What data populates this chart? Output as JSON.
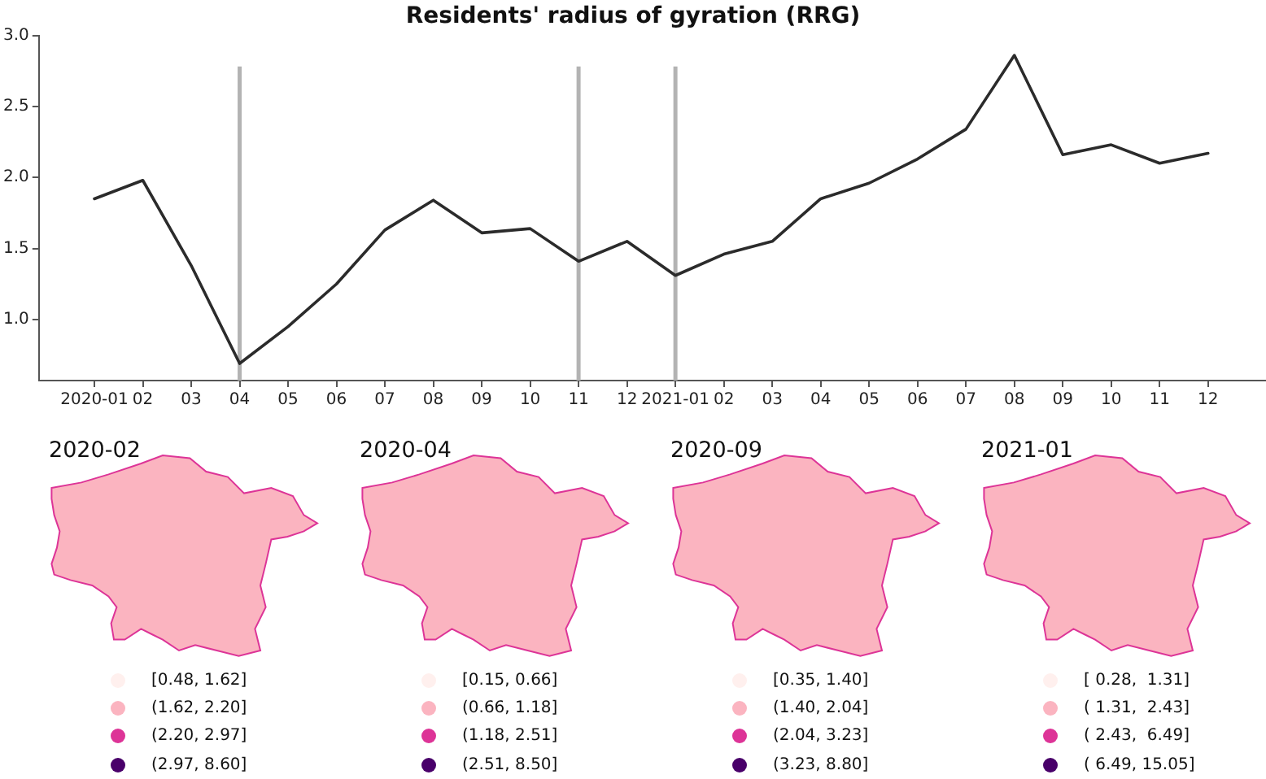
{
  "chart_data": [
    {
      "type": "line",
      "title": "Residents' radius of gyration (RRG)",
      "x": [
        "2020-01",
        "2020-02",
        "2020-03",
        "2020-04",
        "2020-05",
        "2020-06",
        "2020-07",
        "2020-08",
        "2020-09",
        "2020-10",
        "2020-11",
        "2020-12",
        "2021-01",
        "2021-02",
        "2021-03",
        "2021-04",
        "2021-05",
        "2021-06",
        "2021-07",
        "2021-08",
        "2021-09",
        "2021-10",
        "2021-11",
        "2021-12"
      ],
      "series": [
        {
          "color": "#2b2b2b",
          "values": [
            1.85,
            1.98,
            1.38,
            0.69,
            0.95,
            1.25,
            1.63,
            1.84,
            1.61,
            1.64,
            1.41,
            1.55,
            1.31,
            1.46,
            1.55,
            1.85,
            1.96,
            2.13,
            2.34,
            2.86,
            2.16,
            2.23,
            2.1,
            2.17
          ]
        }
      ],
      "xlim": [
        "2019-11-27",
        "2022-01-07"
      ],
      "xticks": [
        {
          "value": "2020-01",
          "label": "2020-01"
        },
        {
          "value": "2020-02",
          "label": "02"
        },
        {
          "value": "2020-03",
          "label": "03"
        },
        {
          "value": "2020-04",
          "label": "04"
        },
        {
          "value": "2020-05",
          "label": "05"
        },
        {
          "value": "2020-06",
          "label": "06"
        },
        {
          "value": "2020-07",
          "label": "07"
        },
        {
          "value": "2020-08",
          "label": "08"
        },
        {
          "value": "2020-09",
          "label": "09"
        },
        {
          "value": "2020-10",
          "label": "10"
        },
        {
          "value": "2020-11",
          "label": "11"
        },
        {
          "value": "2020-12",
          "label": "12"
        },
        {
          "value": "2021-01",
          "label": "2021-01"
        },
        {
          "value": "2021-02",
          "label": "02"
        },
        {
          "value": "2021-03",
          "label": "03"
        },
        {
          "value": "2021-04",
          "label": "04"
        },
        {
          "value": "2021-05",
          "label": "05"
        },
        {
          "value": "2021-06",
          "label": "06"
        },
        {
          "value": "2021-07",
          "label": "07"
        },
        {
          "value": "2021-08",
          "label": "08"
        },
        {
          "value": "2021-09",
          "label": "09"
        },
        {
          "value": "2021-10",
          "label": "10"
        },
        {
          "value": "2021-11",
          "label": "11"
        },
        {
          "value": "2021-12",
          "label": "12"
        }
      ],
      "ylim": [
        0.57,
        3.0
      ],
      "yticks": [
        {
          "value": 1,
          "label": "1.0"
        },
        {
          "value": 1.5,
          "label": "1.5"
        },
        {
          "value": 2,
          "label": "2.0"
        },
        {
          "value": 2.5,
          "label": "2.5"
        },
        {
          "value": 3,
          "label": "3.0"
        }
      ],
      "ref_lines": [
        {
          "axis": "x",
          "value": "2020-04",
          "color": "#b3b3b3"
        },
        {
          "axis": "x",
          "value": "2020-11",
          "color": "#b3b3b3"
        },
        {
          "axis": "x",
          "value": "2021-01",
          "color": "#b3b3b3"
        }
      ],
      "line_style": "solid"
    },
    {
      "type": "other",
      "title": "2020-02",
      "categories": [
        "[0.48, 1.62]",
        "(1.62, 2.20]",
        "(2.20, 2.97]",
        "(2.97, 8.60]"
      ],
      "colors": [
        "#fff0ee",
        "#fbb4c0",
        "#dd3497",
        "#49006a"
      ]
    },
    {
      "type": "other",
      "title": "2020-04",
      "categories": [
        "[0.15, 0.66]",
        "(0.66, 1.18]",
        "(1.18, 2.51]",
        "(2.51, 8.50]"
      ],
      "colors": [
        "#fff0ee",
        "#fbb4c0",
        "#dd3497",
        "#49006a"
      ]
    },
    {
      "type": "other",
      "title": "2020-09",
      "categories": [
        "[0.35, 1.40]",
        "(1.40, 2.04]",
        "(2.04, 3.23]",
        "(3.23, 8.80]"
      ],
      "colors": [
        "#fff0ee",
        "#fbb4c0",
        "#dd3497",
        "#49006a"
      ]
    },
    {
      "type": "other",
      "title": "2021-01",
      "categories": [
        "[ 0.28,  1.31]",
        "( 1.31,  2.43]",
        "( 2.43,  6.49]",
        "( 6.49, 15.05]"
      ],
      "colors": [
        "#fff0ee",
        "#fbb4c0",
        "#dd3497",
        "#49006a"
      ]
    }
  ]
}
